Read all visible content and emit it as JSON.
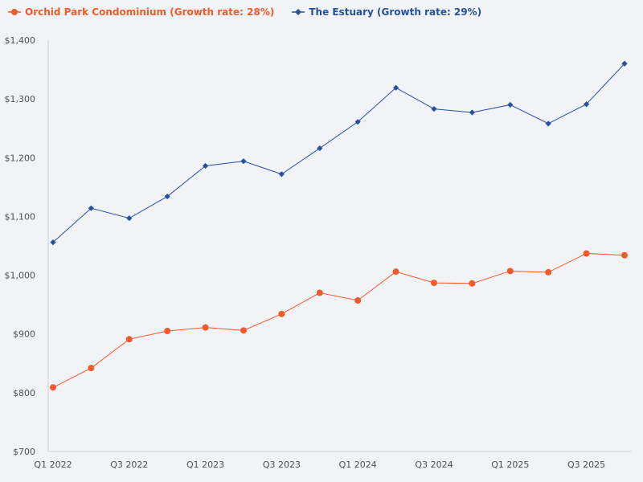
{
  "chart_data": {
    "type": "line",
    "title": "",
    "xlabel": "",
    "ylabel": "",
    "ylim": [
      700,
      1400
    ],
    "y_ticks": [
      "$700",
      "$800",
      "$900",
      "$1,000",
      "$1,100",
      "$1,200",
      "$1,300",
      "$1,400"
    ],
    "y_tick_values": [
      700,
      800,
      900,
      1000,
      1100,
      1200,
      1300,
      1400
    ],
    "categories": [
      "Q1 2022",
      "Q2 2022",
      "Q3 2022",
      "Q4 2022",
      "Q1 2023",
      "Q2 2023",
      "Q3 2023",
      "Q4 2023",
      "Q1 2024",
      "Q2 2024",
      "Q3 2024",
      "Q4 2024",
      "Q1 2025",
      "Q2 2025",
      "Q3 2025",
      "Q4 2025"
    ],
    "x_tick_labels": [
      "Q1 2022",
      "Q3 2022",
      "Q1 2023",
      "Q3 2023",
      "Q1 2024",
      "Q3 2024",
      "Q1 2025",
      "Q3 2025"
    ],
    "series": [
      {
        "name": "Orchid Park Condominium (Growth rate: 28%)",
        "color": "#f15a2b",
        "marker": "circle",
        "values": [
          809,
          842,
          891,
          905,
          911,
          906,
          934,
          970,
          957,
          1006,
          987,
          986,
          1007,
          1005,
          1037,
          1034
        ]
      },
      {
        "name": "The Estuary (Growth rate: 29%)",
        "color": "#2451a0",
        "marker": "diamond",
        "values": [
          1056,
          1114,
          1097,
          1134,
          1186,
          1194,
          1172,
          1216,
          1261,
          1319,
          1283,
          1277,
          1290,
          1258,
          1291,
          1360
        ]
      }
    ],
    "legend": "top-left"
  }
}
